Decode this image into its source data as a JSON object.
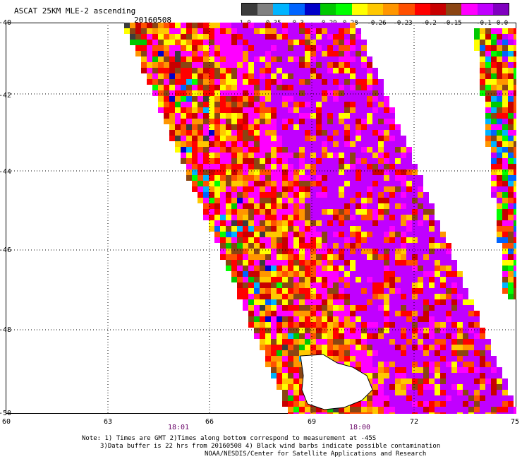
{
  "header": {
    "title": "ASCAT 25KM MLE-2 ascending",
    "date": "20160508"
  },
  "colorbar": {
    "colors": [
      "#3c3c3c",
      "#808080",
      "#00b4ff",
      "#0064ff",
      "#0000c8",
      "#00c800",
      "#00ff00",
      "#ffff00",
      "#ffc800",
      "#ff9600",
      "#ff5000",
      "#ff0000",
      "#c80000",
      "#8b4513",
      "#ff00ff",
      "#c000ff",
      "#8000c0"
    ],
    "labels": [
      "-1.0",
      "-0.35",
      "-0.3",
      "-0.29",
      "-0.28",
      "-0.26",
      "-0.23",
      "-0.2",
      "-0.15",
      "-0.1",
      "0.0"
    ]
  },
  "map": {
    "lat_labels": [
      "-40",
      "-42",
      "-44",
      "-46",
      "-48",
      "-50"
    ],
    "lon_labels": [
      "60",
      "63",
      "66",
      "69",
      "72",
      "75"
    ],
    "time_labels": [
      "18:01",
      "18:00"
    ]
  },
  "footer": {
    "line1": "Note: 1) Times are GMT 2)Times along bottom correspond to measurement at -45S",
    "line2": "3)Data buffer is 22 hrs from 20160508 4) Black wind barbs indicate possible contamination",
    "line3": "NOAA/NESDIS/Center for Satellite Applications and Research"
  }
}
